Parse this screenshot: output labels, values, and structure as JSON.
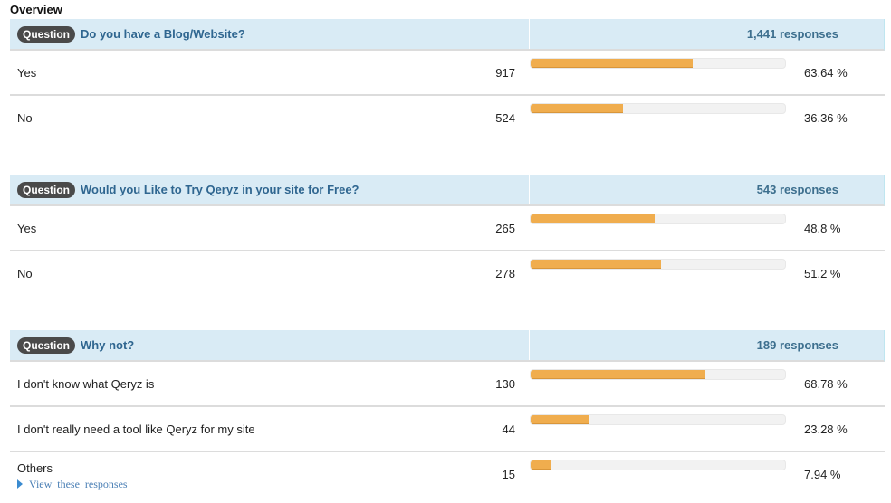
{
  "page": {
    "title": "Overview"
  },
  "badge_label": "Question",
  "questions": [
    {
      "text": "Do you have a Blog/Website?",
      "responses": "1,441 responses",
      "answers": [
        {
          "label": "Yes",
          "count": "917",
          "pct": "63.64 %",
          "pct_value": 63.64
        },
        {
          "label": "No",
          "count": "524",
          "pct": "36.36 %",
          "pct_value": 36.36
        }
      ]
    },
    {
      "text": "Would you Like to Try Qeryz in your site for Free?",
      "responses": "543 responses",
      "answers": [
        {
          "label": "Yes",
          "count": "265",
          "pct": "48.8 %",
          "pct_value": 48.8
        },
        {
          "label": "No",
          "count": "278",
          "pct": "51.2 %",
          "pct_value": 51.2
        }
      ]
    },
    {
      "text": "Why not?",
      "responses": "189 responses",
      "answers": [
        {
          "label": "I don't know what Qeryz is",
          "count": "130",
          "pct": "68.78 %",
          "pct_value": 68.78
        },
        {
          "label": "I don't really need a tool like Qeryz for my site",
          "count": "44",
          "pct": "23.28 %",
          "pct_value": 23.28
        },
        {
          "label": "Others",
          "count": "15",
          "pct": "7.94 %",
          "pct_value": 7.94,
          "link": "View these responses"
        }
      ]
    }
  ],
  "colors": {
    "bar_fill": "#f0ad4e",
    "bar_track": "#f2f2f2",
    "header_bg": "#d9ebf5",
    "question_text": "#2f6690",
    "badge_bg": "#4a4a4a"
  }
}
